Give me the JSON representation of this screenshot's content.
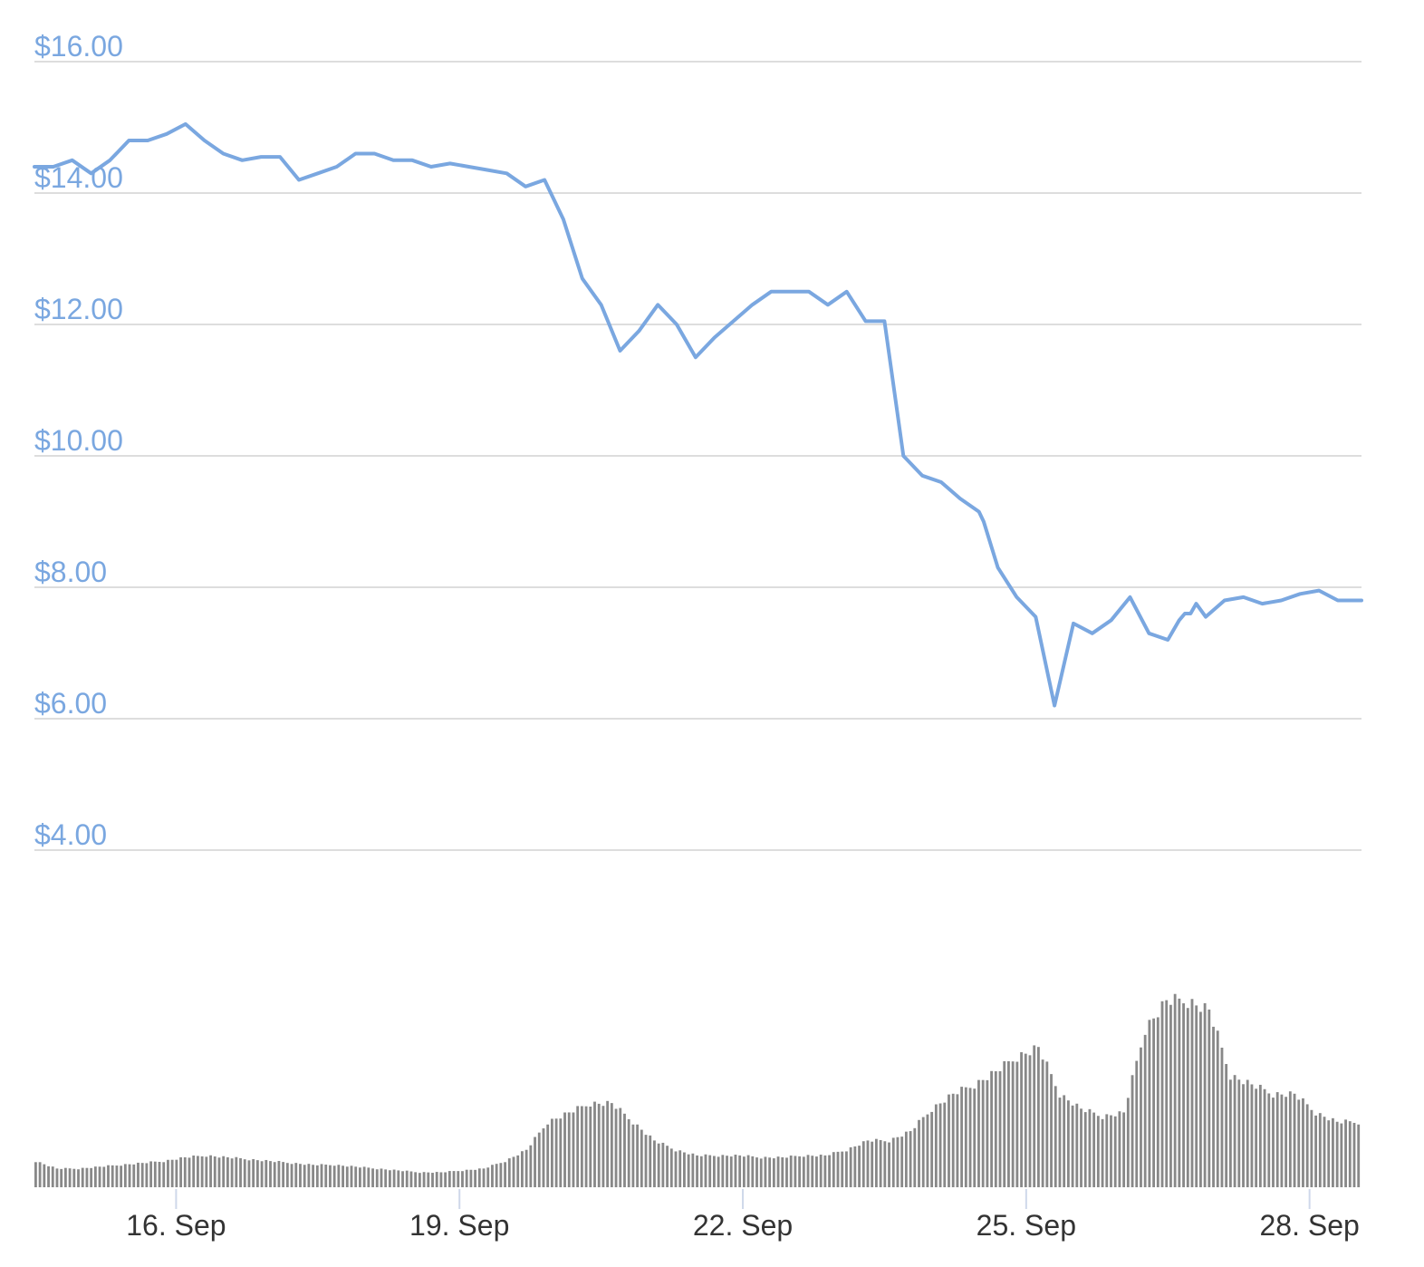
{
  "chart_data": {
    "type": "line",
    "title": "",
    "xlabel": "",
    "ylabel": "",
    "ylim": [
      4,
      16
    ],
    "y_ticks": [
      "$4.00",
      "$6.00",
      "$8.00",
      "$10.00",
      "$12.00",
      "$14.00",
      "$16.00"
    ],
    "y_tick_values": [
      4,
      6,
      8,
      10,
      12,
      14,
      16
    ],
    "x_ticks": [
      "16. Sep",
      "19. Sep",
      "22. Sep",
      "25. Sep",
      "28. Sep"
    ],
    "x_tick_values": [
      16,
      19,
      22,
      25,
      28
    ],
    "xlim": [
      14.5,
      28.55
    ],
    "grid": true,
    "legend": "none",
    "colors": {
      "price_line": "#7aa7e0",
      "volume_bars": "#888888",
      "grid": "#dddddd",
      "axis_labels": "#7aa7e0",
      "x_labels": "#333333"
    },
    "series": [
      {
        "x": [
          14.5,
          14.7,
          14.9,
          15.1,
          15.3,
          15.5,
          15.7,
          15.9,
          16.1,
          16.3,
          16.5,
          16.7,
          16.9,
          17.1,
          17.3,
          17.5,
          17.7,
          17.9,
          18.1,
          18.3,
          18.5,
          18.7,
          18.9,
          19.1,
          19.3,
          19.5,
          19.7,
          19.9,
          20.1,
          20.3,
          20.5,
          20.7,
          20.9,
          21.1,
          21.3,
          21.5,
          21.7,
          21.9,
          22.1,
          22.3,
          22.5,
          22.7,
          22.9,
          23.1,
          23.3,
          23.5,
          23.7,
          23.9,
          24.1,
          24.3,
          24.5,
          24.55,
          24.7,
          24.9,
          25.1,
          25.3,
          25.5,
          25.7,
          25.9,
          26.1,
          26.3,
          26.5,
          26.62,
          26.68,
          26.74,
          26.8,
          26.9,
          27.1,
          27.3,
          27.5,
          27.7,
          27.9,
          28.1,
          28.3,
          28.5,
          28.55
        ],
        "y": [
          14.4,
          14.4,
          14.5,
          14.3,
          14.5,
          14.8,
          14.8,
          14.9,
          15.05,
          14.8,
          14.6,
          14.5,
          14.55,
          14.55,
          14.2,
          14.3,
          14.4,
          14.6,
          14.6,
          14.5,
          14.5,
          14.4,
          14.45,
          14.4,
          14.35,
          14.3,
          14.1,
          14.2,
          13.6,
          12.7,
          12.3,
          11.6,
          11.9,
          12.3,
          12.0,
          11.5,
          11.8,
          12.05,
          12.3,
          12.5,
          12.5,
          12.5,
          12.3,
          12.5,
          12.05,
          12.05,
          10.0,
          9.7,
          9.6,
          9.35,
          9.15,
          9.0,
          8.3,
          7.85,
          7.55,
          6.2,
          7.45,
          7.3,
          7.5,
          7.85,
          7.3,
          7.2,
          7.5,
          7.6,
          7.6,
          7.75,
          7.55,
          7.8,
          7.85,
          7.75,
          7.8,
          7.9,
          7.95,
          7.8,
          7.8,
          7.8
        ]
      },
      {
        "y": [
          0.14,
          0.1,
          0.1,
          0.11,
          0.12,
          0.13,
          0.14,
          0.16,
          0.17,
          0.16,
          0.15,
          0.14,
          0.13,
          0.12,
          0.12,
          0.11,
          0.1,
          0.09,
          0.08,
          0.08,
          0.09,
          0.1,
          0.14,
          0.2,
          0.35,
          0.4,
          0.45,
          0.45,
          0.35,
          0.25,
          0.2,
          0.17,
          0.17,
          0.17,
          0.16,
          0.16,
          0.17,
          0.17,
          0.2,
          0.25,
          0.25,
          0.3,
          0.42,
          0.5,
          0.55,
          0.62,
          0.7,
          0.75,
          0.5,
          0.42,
          0.38,
          0.4,
          0.85,
          1.0,
          1.0,
          0.95,
          0.6,
          0.55,
          0.5,
          0.5,
          0.4,
          0.35,
          0.35
        ]
      }
    ]
  }
}
